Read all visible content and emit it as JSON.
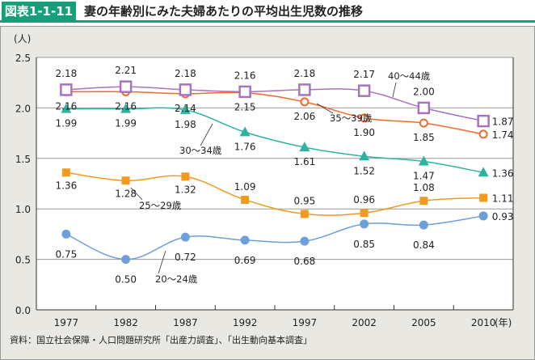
{
  "header": {
    "badge": "図表1-1-11",
    "title": "妻の年齢別にみた夫婦あたりの平均出生児数の推移"
  },
  "source": "資料：国立社会保障・人口問題研究所「出産力調査」、「出生動向基本調査」",
  "chart_data": {
    "type": "line",
    "title": "",
    "ylabel": "(人)",
    "xlabel": "(年)",
    "ylim": [
      0,
      2.5
    ],
    "yticks": [
      "0.0",
      "0.5",
      "1.0",
      "1.5",
      "2.0",
      "2.5"
    ],
    "grid": "horizontal",
    "categories": [
      "1977",
      "1982",
      "1987",
      "1992",
      "1997",
      "2002",
      "2005",
      "2010"
    ],
    "series": [
      {
        "name": "40～44歳",
        "color": "#a673bd",
        "marker": "open-square",
        "values": [
          2.18,
          2.21,
          2.18,
          2.16,
          2.18,
          2.17,
          2.0,
          1.87
        ]
      },
      {
        "name": "35～39歳",
        "color": "#f06a2a",
        "marker": "open-circle",
        "values": [
          2.16,
          2.16,
          2.14,
          2.15,
          2.06,
          1.9,
          1.85,
          1.74
        ]
      },
      {
        "name": "30～34歳",
        "color": "#2eb3a0",
        "marker": "triangle",
        "values": [
          1.99,
          1.99,
          1.98,
          1.76,
          1.61,
          1.52,
          1.47,
          1.36
        ]
      },
      {
        "name": "25～29歳",
        "color": "#f39a1e",
        "marker": "square",
        "values": [
          1.36,
          1.28,
          1.32,
          1.09,
          0.95,
          0.96,
          1.08,
          1.11
        ]
      },
      {
        "name": "20～24歳",
        "color": "#6f9fd8",
        "marker": "circle",
        "values": [
          0.75,
          0.5,
          0.72,
          0.69,
          0.68,
          0.85,
          0.84,
          0.93
        ]
      }
    ]
  }
}
